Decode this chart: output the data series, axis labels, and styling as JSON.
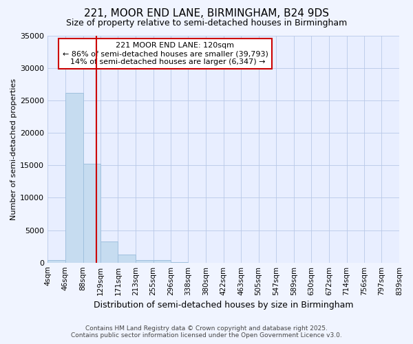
{
  "title": "221, MOOR END LANE, BIRMINGHAM, B24 9DS",
  "subtitle": "Size of property relative to semi-detached houses in Birmingham",
  "xlabel": "Distribution of semi-detached houses by size in Birmingham",
  "ylabel": "Number of semi-detached properties",
  "annotation_line1": "221 MOOR END LANE: 120sqm",
  "annotation_line2": "← 86% of semi-detached houses are smaller (39,793)",
  "annotation_line3": "14% of semi-detached houses are larger (6,347) →",
  "bin_edges": [
    4,
    46,
    88,
    129,
    171,
    213,
    255,
    296,
    338,
    380,
    422,
    463,
    505,
    547,
    589,
    630,
    672,
    714,
    756,
    797,
    839
  ],
  "bin_counts": [
    400,
    26100,
    15200,
    3200,
    1200,
    430,
    360,
    120,
    0,
    0,
    0,
    0,
    0,
    0,
    0,
    0,
    0,
    0,
    0,
    0
  ],
  "bar_facecolor": "#c6dcf0",
  "bar_edgecolor": "#a0c0de",
  "vline_x": 120,
  "vline_color": "#cc0000",
  "ylim": [
    0,
    35000
  ],
  "yticks": [
    0,
    5000,
    10000,
    15000,
    20000,
    25000,
    30000,
    35000
  ],
  "background_color": "#f0f4ff",
  "plot_bg_color": "#e8eeff",
  "grid_color": "#b8c8e8",
  "annotation_box_edgecolor": "#cc0000",
  "footer_line1": "Contains HM Land Registry data © Crown copyright and database right 2025.",
  "footer_line2": "Contains public sector information licensed under the Open Government Licence v3.0."
}
